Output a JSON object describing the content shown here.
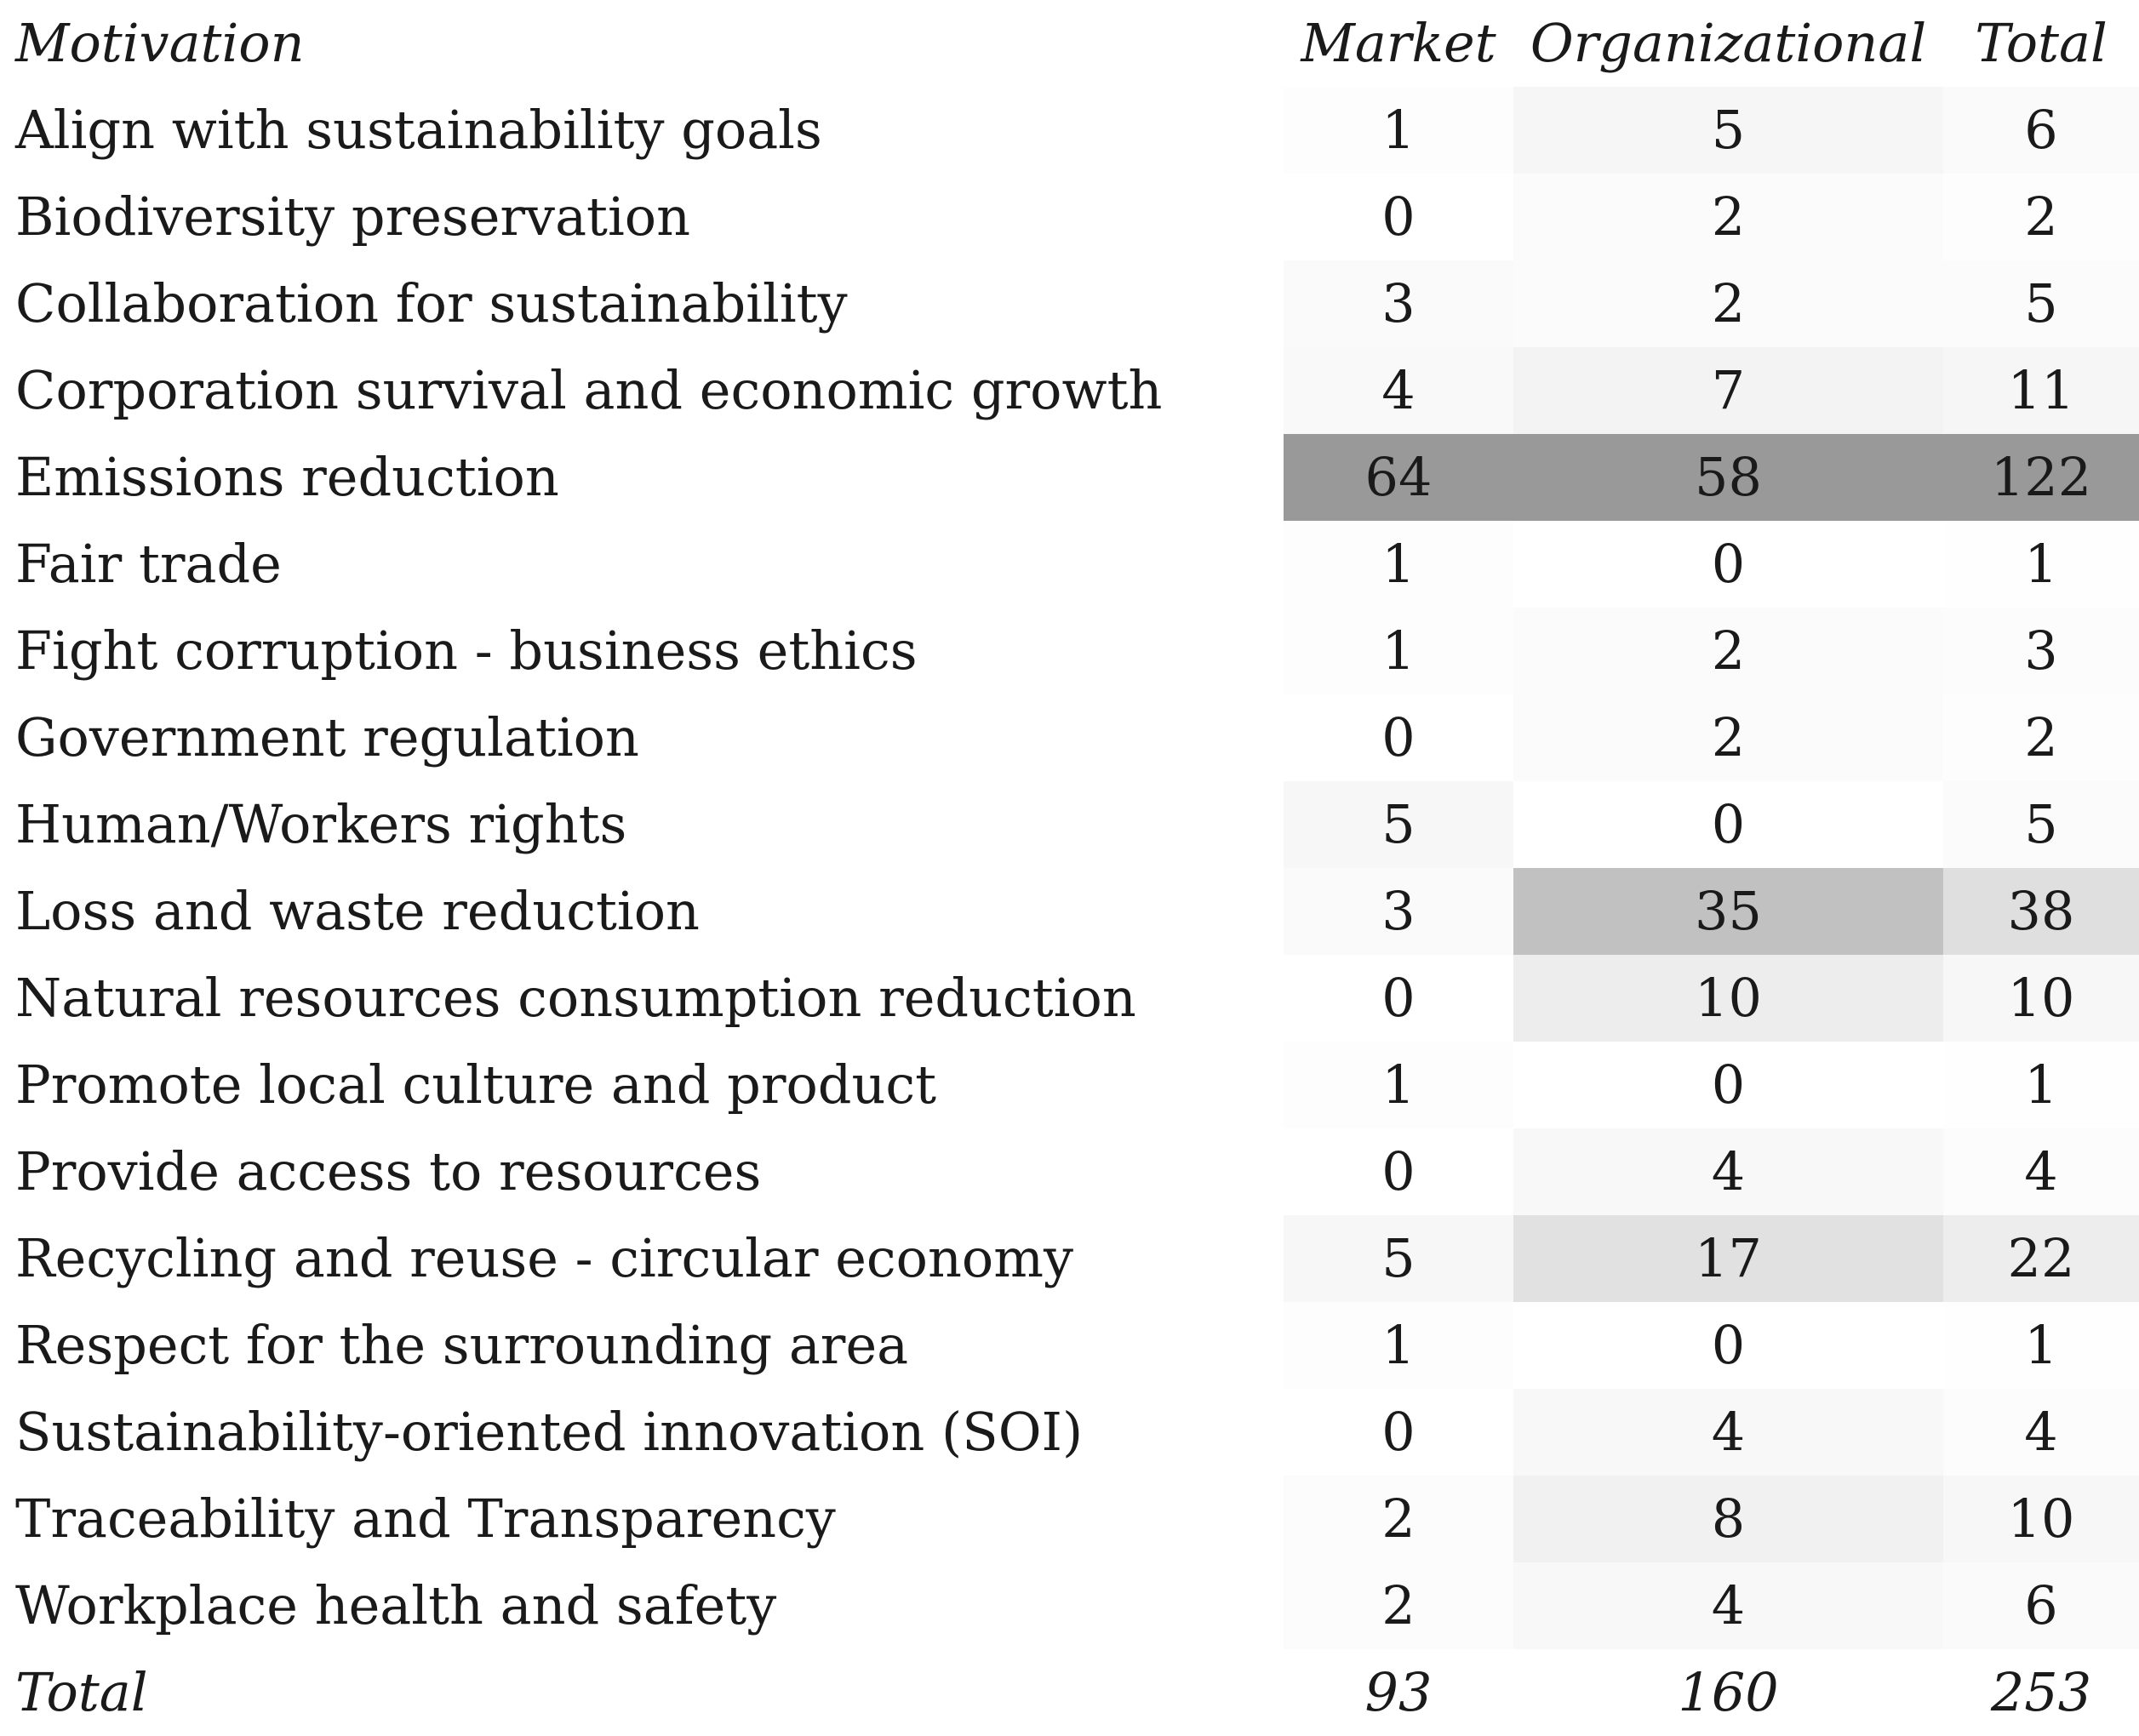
{
  "chart_data": {
    "type": "table",
    "columns": [
      "Motivation",
      "Market",
      "Organizational",
      "Total"
    ],
    "rows": [
      {
        "label": "Align with sustainability goals",
        "values": [
          1,
          5,
          6
        ]
      },
      {
        "label": "Biodiversity preservation",
        "values": [
          0,
          2,
          2
        ]
      },
      {
        "label": "Collaboration for sustainability",
        "values": [
          3,
          2,
          5
        ]
      },
      {
        "label": "Corporation survival and economic growth",
        "values": [
          4,
          7,
          11
        ]
      },
      {
        "label": "Emissions reduction",
        "values": [
          64,
          58,
          122
        ]
      },
      {
        "label": "Fair trade",
        "values": [
          1,
          0,
          1
        ]
      },
      {
        "label": "Fight corruption - business ethics",
        "values": [
          1,
          2,
          3
        ]
      },
      {
        "label": "Government regulation",
        "values": [
          0,
          2,
          2
        ]
      },
      {
        "label": "Human/Workers rights",
        "values": [
          5,
          0,
          5
        ]
      },
      {
        "label": "Loss and waste reduction",
        "values": [
          3,
          35,
          38
        ]
      },
      {
        "label": "Natural resources consumption reduction",
        "values": [
          0,
          10,
          10
        ]
      },
      {
        "label": "Promote local culture and product",
        "values": [
          1,
          0,
          1
        ]
      },
      {
        "label": "Provide access to resources",
        "values": [
          0,
          4,
          4
        ]
      },
      {
        "label": "Recycling and reuse - circular economy",
        "values": [
          5,
          17,
          22
        ]
      },
      {
        "label": "Respect for the surrounding area",
        "values": [
          1,
          0,
          1
        ]
      },
      {
        "label": "Sustainability-oriented innovation (SOI)",
        "values": [
          0,
          4,
          4
        ]
      },
      {
        "label": "Traceability and Transparency",
        "values": [
          2,
          8,
          10
        ]
      },
      {
        "label": "Workplace health and safety",
        "values": [
          2,
          4,
          6
        ]
      }
    ],
    "totals": {
      "label": "Total",
      "values": [
        93,
        160,
        253
      ]
    },
    "shading": {
      "color": "#999999",
      "scale": "per-column"
    }
  }
}
